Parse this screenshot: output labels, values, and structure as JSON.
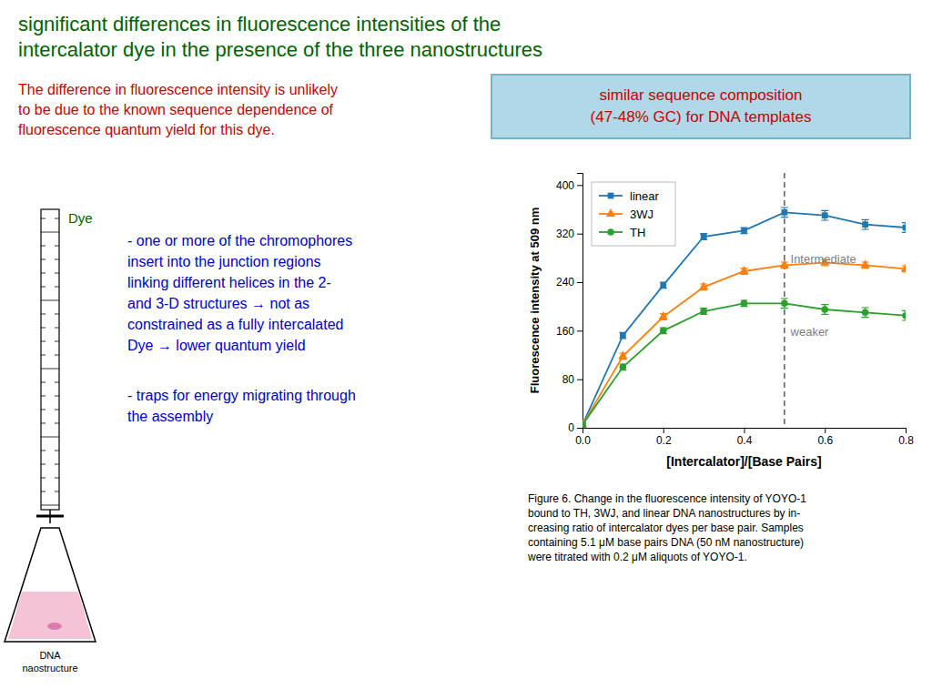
{
  "chart_data": {
    "type": "line",
    "title": "significant differences in fluorescence intensities of the",
    "subtitle": "intercalator dye in the presence of the three nanostructures",
    "xlabel": "[Intercalator]/[Base Pairs]",
    "ylabel": "Fluorescence intensity at 509 nm",
    "x": [
      0.0,
      0.1,
      0.2,
      0.3,
      0.4,
      0.5,
      0.6,
      0.7,
      0.8
    ],
    "series": [
      {
        "name": "linear",
        "marker": "square",
        "values": [
          5,
          152,
          235,
          315,
          325,
          355,
          350,
          335,
          330
        ],
        "errors": [
          3,
          5,
          5,
          5,
          5,
          8,
          8,
          8,
          8
        ]
      },
      {
        "name": "3WJ",
        "marker": "triangle",
        "values": [
          5,
          118,
          183,
          232,
          258,
          268,
          272,
          268,
          262
        ],
        "errors": [
          3,
          5,
          5,
          5,
          5,
          5,
          5,
          5,
          5
        ]
      },
      {
        "name": "TH",
        "marker": "circle",
        "values": [
          5,
          100,
          160,
          192,
          205,
          205,
          195,
          190,
          185
        ],
        "errors": [
          3,
          5,
          5,
          5,
          5,
          8,
          8,
          8,
          8
        ]
      }
    ],
    "xlim": [
      0.0,
      0.8
    ],
    "ylim": [
      0,
      420
    ],
    "xticks": [
      {
        "value": 0.0,
        "label": "0.0"
      },
      0.2,
      0.4,
      0.6,
      0.8
    ],
    "yticks": [
      0,
      80,
      160,
      240,
      320,
      400
    ],
    "grid": false,
    "legend": "upper left",
    "vlines": [
      0.5
    ],
    "annotations": [
      {
        "text": "Intermediate",
        "x": 0.515,
        "y": 272
      },
      {
        "text": "weaker",
        "x": 0.515,
        "y": 152
      }
    ],
    "text_blocks": [
      "similar sequence composition\n(47-48% GC) for DNA templates",
      "The difference in fluorescence intensity is unlikely\nto be due to the known sequence dependence of\nfluorescence quantum yield for this dye.",
      "Dye",
      "- one or more of the chromophores\ninsert into the junction regions\nlinking different helices in the 2-\nand 3-D structures → not as\nconstrained as a fully intercalated\nDye → lower quantum yield",
      "- traps for energy migrating through\nthe assembly",
      "DNA\nnaostructure"
    ],
    "caption": "Figure 6. Change in the fluorescence intensity of YOYO-1\nbound to TH, 3WJ, and linear DNA nanostructures by in-\ncreasing ratio of intercalator dyes per base pair. Samples\ncontaining 5.1 μM base pairs DNA (50 nM nanostructure)\nwere titrated with 0.2 μM aliquots of YOYO-1."
  }
}
